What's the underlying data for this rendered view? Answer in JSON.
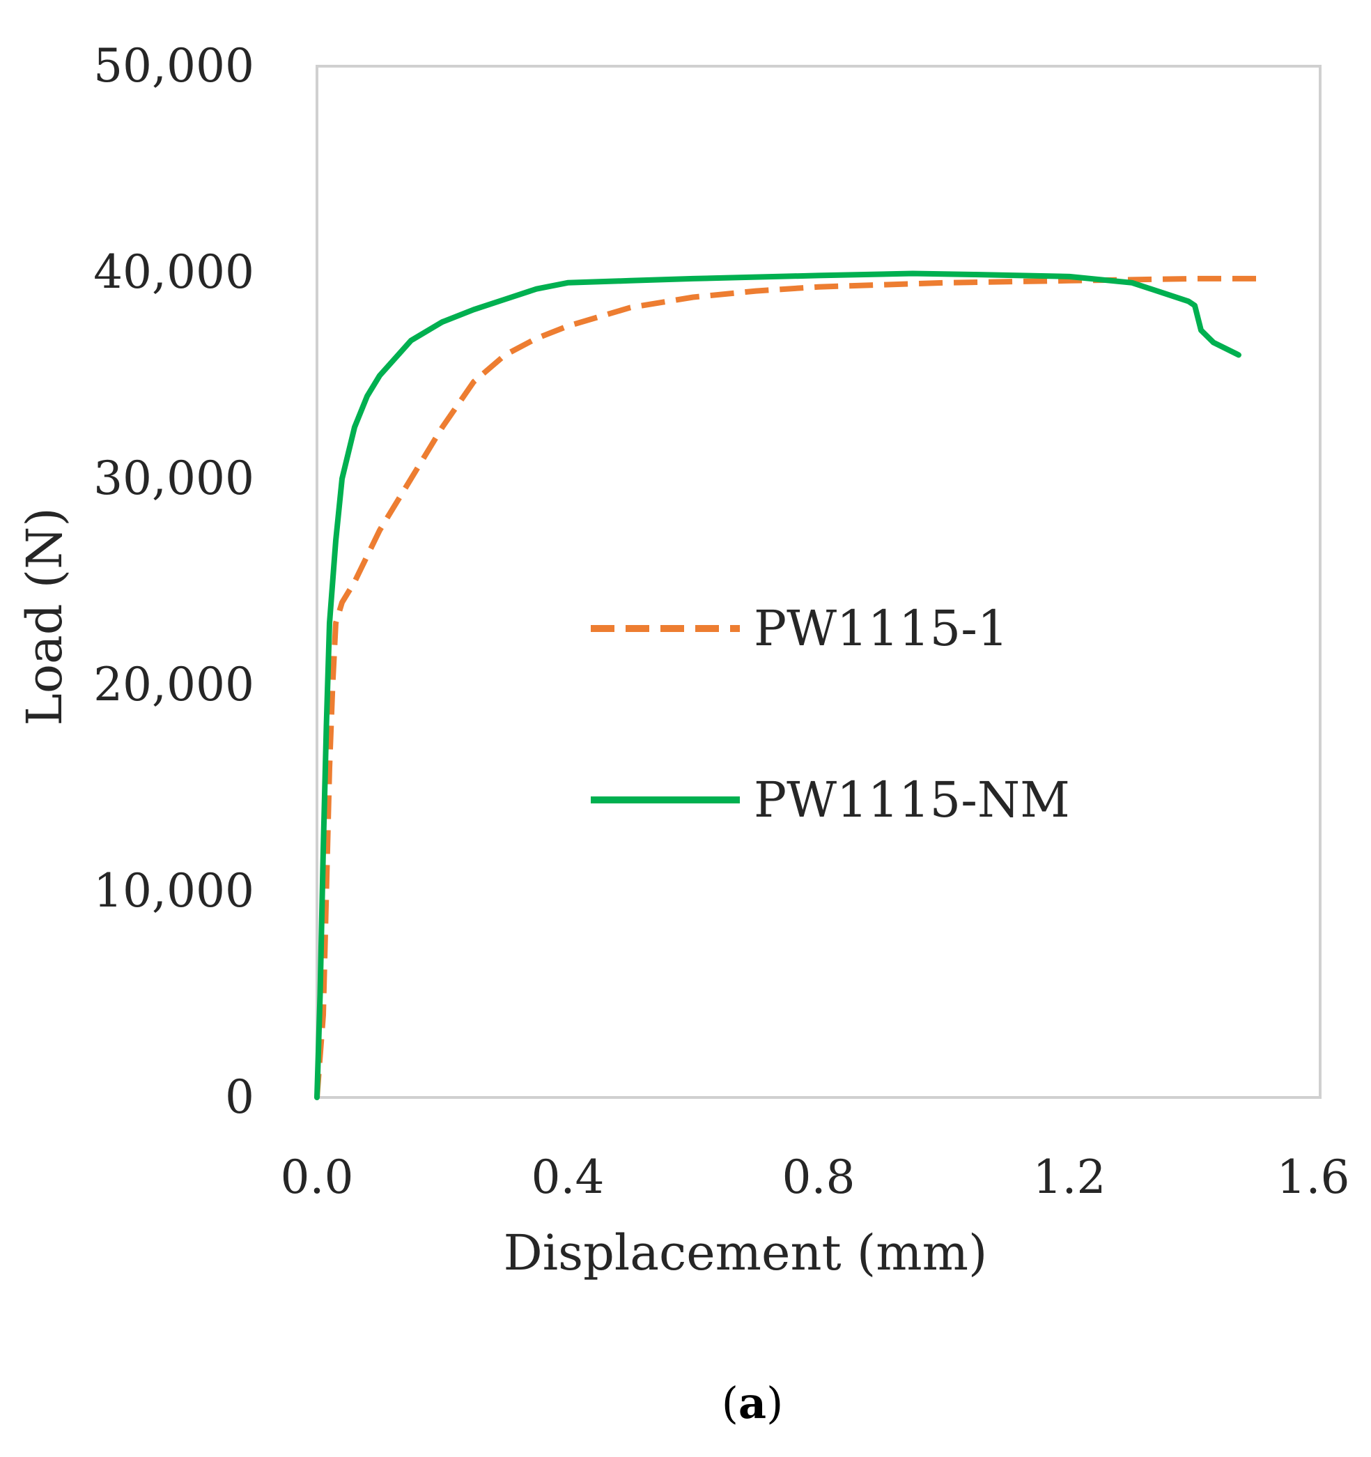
{
  "chart_data": {
    "type": "line",
    "title": "",
    "xlabel": "Displacement (mm)",
    "ylabel": "Load (N)",
    "xlim": [
      0.0,
      1.6
    ],
    "ylim": [
      0,
      50000
    ],
    "x_ticks": [
      0.0,
      0.4,
      0.8,
      1.2,
      1.6
    ],
    "x_tick_labels": [
      "0.0",
      "0.4",
      "0.8",
      "1.2",
      "1.6"
    ],
    "y_ticks": [
      0,
      10000,
      20000,
      30000,
      40000,
      50000
    ],
    "y_tick_labels": [
      "0",
      "10,000",
      "20,000",
      "30,000",
      "40,000",
      "50,000"
    ],
    "grid": false,
    "legend_position": "center-right",
    "series": [
      {
        "name": "PW1115-1",
        "color": "#ED7D31",
        "line_style": "dashed",
        "points": [
          [
            0.0,
            0
          ],
          [
            0.01,
            4000
          ],
          [
            0.015,
            10000
          ],
          [
            0.02,
            16000
          ],
          [
            0.025,
            20000
          ],
          [
            0.03,
            23000
          ],
          [
            0.04,
            24000
          ],
          [
            0.06,
            25000
          ],
          [
            0.1,
            27500
          ],
          [
            0.15,
            30000
          ],
          [
            0.2,
            32500
          ],
          [
            0.25,
            34700
          ],
          [
            0.3,
            36000
          ],
          [
            0.35,
            36800
          ],
          [
            0.4,
            37400
          ],
          [
            0.5,
            38300
          ],
          [
            0.6,
            38800
          ],
          [
            0.7,
            39100
          ],
          [
            0.8,
            39300
          ],
          [
            1.0,
            39500
          ],
          [
            1.2,
            39600
          ],
          [
            1.4,
            39700
          ],
          [
            1.5,
            39700
          ]
        ]
      },
      {
        "name": "PW1115-NM",
        "color": "#00B050",
        "line_style": "solid",
        "points": [
          [
            0.0,
            0
          ],
          [
            0.005,
            5000
          ],
          [
            0.01,
            12000
          ],
          [
            0.015,
            18000
          ],
          [
            0.02,
            23000
          ],
          [
            0.03,
            27000
          ],
          [
            0.04,
            30000
          ],
          [
            0.06,
            32500
          ],
          [
            0.08,
            34000
          ],
          [
            0.1,
            35000
          ],
          [
            0.15,
            36700
          ],
          [
            0.2,
            37600
          ],
          [
            0.25,
            38200
          ],
          [
            0.3,
            38700
          ],
          [
            0.35,
            39200
          ],
          [
            0.4,
            39500
          ],
          [
            0.5,
            39600
          ],
          [
            0.6,
            39700
          ],
          [
            0.8,
            39850
          ],
          [
            0.95,
            39950
          ],
          [
            1.05,
            39900
          ],
          [
            1.2,
            39800
          ],
          [
            1.3,
            39500
          ],
          [
            1.35,
            39000
          ],
          [
            1.39,
            38600
          ],
          [
            1.4,
            38400
          ],
          [
            1.41,
            37200
          ],
          [
            1.43,
            36600
          ],
          [
            1.47,
            36000
          ]
        ]
      }
    ],
    "legend": [
      "PW1115-1",
      "PW1115-NM"
    ]
  },
  "panel_label": {
    "open": "(",
    "letter": "a",
    "close": ")"
  },
  "colors": {
    "axis_frame": "#D0D0D0",
    "text": "#262626"
  }
}
